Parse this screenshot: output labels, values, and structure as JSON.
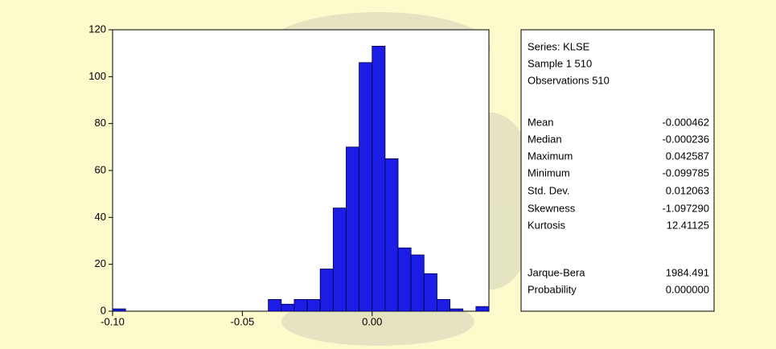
{
  "chart_data": {
    "type": "histogram",
    "bins": [
      -0.1,
      -0.095,
      -0.09,
      -0.085,
      -0.08,
      -0.075,
      -0.07,
      -0.065,
      -0.06,
      -0.055,
      -0.05,
      -0.045,
      -0.04,
      -0.035,
      -0.03,
      -0.025,
      -0.02,
      -0.015,
      -0.01,
      -0.005,
      0,
      0.005,
      0.01,
      0.015,
      0.02,
      0.025,
      0.03,
      0.035,
      0.04,
      0.045
    ],
    "values": [
      1,
      0,
      0,
      0,
      0,
      0,
      0,
      0,
      0,
      0,
      0,
      0,
      5,
      3,
      5,
      5,
      18,
      44,
      70,
      106,
      113,
      65,
      27,
      24,
      16,
      5,
      1,
      0,
      2
    ],
    "color": "#1c1ce6",
    "xlim": [
      -0.1,
      0.045
    ],
    "xticks": [
      {
        "value": -0.1,
        "label": "-0.10"
      },
      {
        "value": -0.05,
        "label": "-0.05"
      },
      {
        "value": 0,
        "label": "0.00"
      }
    ],
    "ylim": [
      0,
      120
    ],
    "yticks": [
      0,
      20,
      40,
      60,
      80,
      100,
      120
    ]
  },
  "stats": {
    "header": [
      "Series: KLSE",
      "Sample 1 510",
      "Observations 510"
    ],
    "rows": [
      [
        "Mean",
        "-0.000462"
      ],
      [
        "Median",
        "-0.000236"
      ],
      [
        "Maximum",
        "0.042587"
      ],
      [
        "Minimum",
        "-0.099785"
      ],
      [
        "Std. Dev.",
        "0.012063"
      ],
      [
        "Skewness",
        "-1.097290"
      ],
      [
        "Kurtosis",
        "12.41125"
      ],
      [
        "Jarque-Bera",
        "1984.491"
      ],
      [
        "Probability",
        "0.000000"
      ]
    ]
  }
}
